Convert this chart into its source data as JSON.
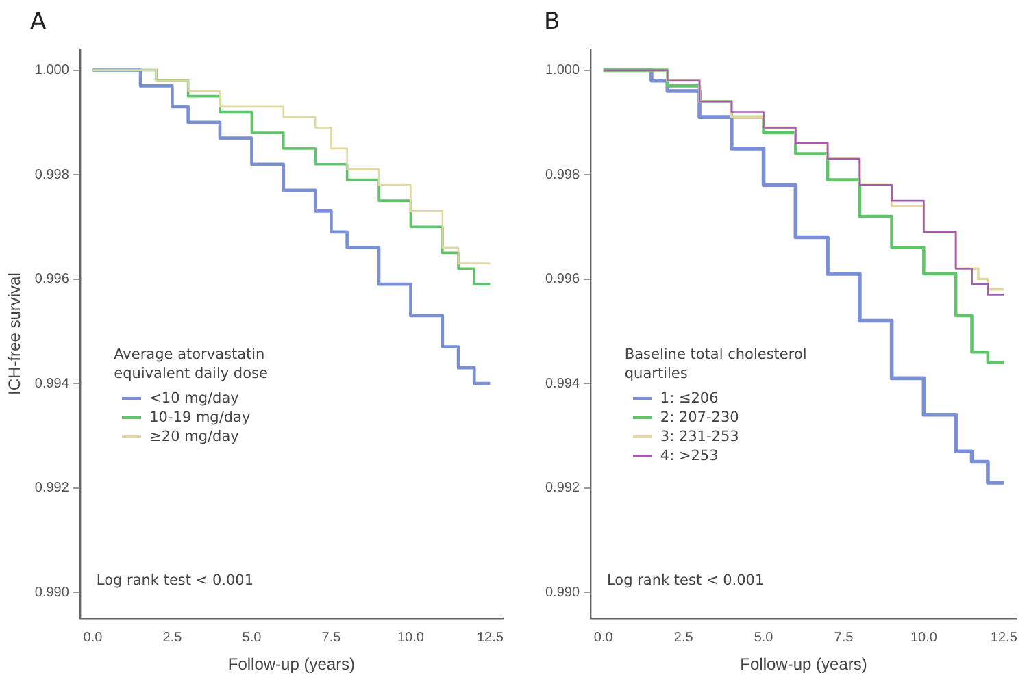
{
  "chart_data": [
    {
      "type": "step",
      "title": "A",
      "xlabel": "Follow-up (years)",
      "ylabel": "ICH-free survival",
      "legend_title": "Average atorvastatin equivalent daily dose",
      "legend": "center",
      "grid": false,
      "marker": "none",
      "xlim": [
        -0.4,
        12.9
      ],
      "ylim": [
        0.9895,
        1.0004
      ],
      "xticks": [
        {
          "value": 0,
          "label": "0.0"
        },
        2.5,
        {
          "value": 5,
          "label": "5.0"
        },
        7.5,
        {
          "value": 10,
          "label": "10.0"
        },
        12.5
      ],
      "yticks": [
        {
          "value": 0.99,
          "label": "0.990"
        },
        {
          "value": 0.992,
          "label": "0.992"
        },
        {
          "value": 0.994,
          "label": "0.994"
        },
        {
          "value": 0.996,
          "label": "0.996"
        },
        {
          "value": 0.998,
          "label": "0.998"
        },
        {
          "value": 1,
          "label": "1.000"
        }
      ],
      "annotations": [
        "Log rank test < 0.001"
      ],
      "series": [
        {
          "name": "<10 mg/day",
          "color": "#7b8fd6",
          "x": [
            0,
            1,
            1.5,
            2.5,
            3,
            4,
            5,
            6,
            7,
            7.5,
            8,
            9,
            10,
            11,
            11.5,
            12,
            12.5
          ],
          "values": [
            1,
            1,
            0.9997,
            0.9993,
            0.999,
            0.9987,
            0.9982,
            0.9977,
            0.9973,
            0.9969,
            0.9966,
            0.9959,
            0.9953,
            0.9947,
            0.9943,
            0.994,
            0.994
          ]
        },
        {
          "name": "10-19 mg/day",
          "color": "#5fc46a",
          "x": [
            0,
            1,
            2,
            3,
            4,
            5,
            6,
            7,
            8,
            9,
            10,
            11,
            11.5,
            12,
            12.5
          ],
          "values": [
            1,
            1,
            0.9998,
            0.9995,
            0.9992,
            0.9988,
            0.9985,
            0.9982,
            0.9979,
            0.9975,
            0.997,
            0.9965,
            0.9962,
            0.9959,
            0.9959
          ]
        },
        {
          "name": "≥20 mg/day",
          "color": "#e3d9a0",
          "x": [
            0,
            1.5,
            2,
            3,
            4,
            5,
            6,
            7,
            7.5,
            8,
            9,
            10,
            11,
            11.5,
            12.5
          ],
          "values": [
            1,
            1,
            0.9998,
            0.9996,
            0.9993,
            0.9993,
            0.9991,
            0.9989,
            0.9985,
            0.9981,
            0.9978,
            0.9973,
            0.9966,
            0.9963,
            0.9963
          ]
        }
      ]
    },
    {
      "type": "step",
      "title": "B",
      "xlabel": "Follow-up (years)",
      "legend_title": "Baseline total cholesterol quartiles",
      "legend": "center",
      "grid": false,
      "marker": "none",
      "xlim": [
        -0.4,
        12.9
      ],
      "ylim": [
        0.9895,
        1.0004
      ],
      "xticks": [
        {
          "value": 0,
          "label": "0.0"
        },
        2.5,
        {
          "value": 5,
          "label": "5.0"
        },
        7.5,
        {
          "value": 10,
          "label": "10.0"
        },
        12.5
      ],
      "yticks": [
        {
          "value": 0.99,
          "label": "0.990"
        },
        {
          "value": 0.992,
          "label": "0.992"
        },
        {
          "value": 0.994,
          "label": "0.994"
        },
        {
          "value": 0.996,
          "label": "0.996"
        },
        {
          "value": 0.998,
          "label": "0.998"
        },
        {
          "value": 1,
          "label": "1.000"
        }
      ],
      "annotations": [
        "Log rank test < 0.001"
      ],
      "series": [
        {
          "name": "1: ≤206",
          "color": "#7b8fd6",
          "x": [
            0,
            1,
            1.5,
            2,
            3,
            4,
            5,
            6,
            7,
            8,
            9,
            10,
            11,
            11.5,
            12,
            12.5
          ],
          "values": [
            1,
            1,
            0.9998,
            0.9996,
            0.9991,
            0.9985,
            0.9978,
            0.9968,
            0.9961,
            0.9952,
            0.9941,
            0.9934,
            0.9927,
            0.9925,
            0.9921,
            0.9921
          ]
        },
        {
          "name": "2: 207-230",
          "color": "#5fc46a",
          "x": [
            0,
            1,
            2,
            3,
            4,
            5,
            6,
            7,
            8,
            9,
            10,
            11,
            11.5,
            12,
            12.5
          ],
          "values": [
            1,
            1,
            0.9997,
            0.9994,
            0.9991,
            0.9988,
            0.9984,
            0.9979,
            0.9972,
            0.9966,
            0.9961,
            0.9953,
            0.9946,
            0.9944,
            0.9944
          ]
        },
        {
          "name": "3: 231-253",
          "color": "#e3d9a0",
          "x": [
            0,
            1,
            2,
            3,
            4,
            5,
            6,
            7,
            8,
            9,
            10,
            11,
            11.7,
            12,
            12.5
          ],
          "values": [
            1,
            1,
            0.9998,
            0.9994,
            0.9991,
            0.9989,
            0.9986,
            0.9983,
            0.9978,
            0.9974,
            0.9969,
            0.9962,
            0.996,
            0.9958,
            0.9958
          ]
        },
        {
          "name": "4: >253",
          "color": "#a25bb0",
          "x": [
            0,
            1,
            2,
            3,
            4,
            5,
            6,
            7,
            8,
            9,
            10,
            11,
            11.5,
            12,
            12.5
          ],
          "values": [
            1,
            1,
            0.9998,
            0.9994,
            0.9992,
            0.9989,
            0.9986,
            0.9983,
            0.9978,
            0.9975,
            0.9969,
            0.9962,
            0.9959,
            0.9957,
            0.9957
          ]
        }
      ]
    }
  ]
}
